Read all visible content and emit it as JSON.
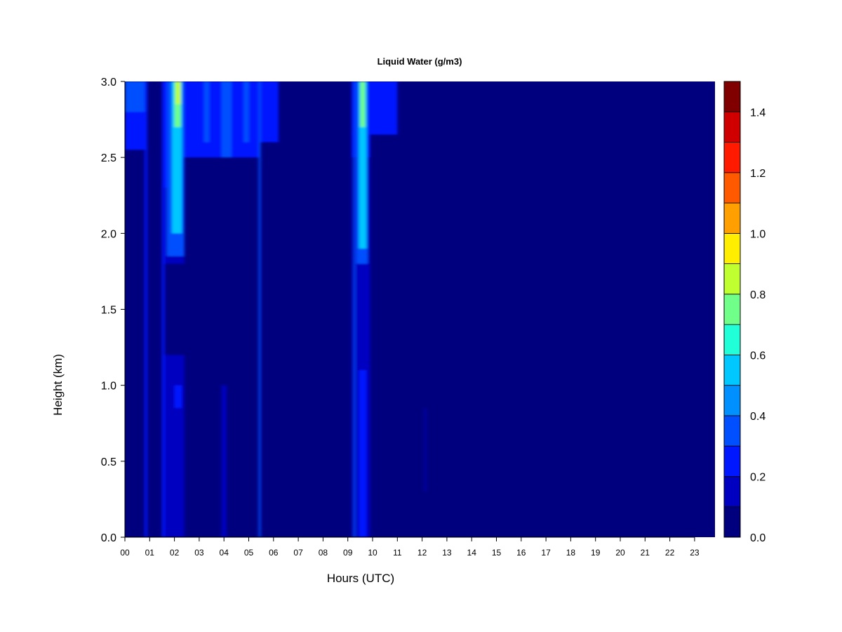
{
  "chart_data": {
    "type": "heatmap",
    "title": "Liquid Water (g/m3)",
    "xlabel": "Hours (UTC)",
    "ylabel": "Height (km)",
    "xlim": [
      0,
      24
    ],
    "ylim": [
      0.0,
      3.0
    ],
    "x_ticks": [
      "00",
      "01",
      "02",
      "03",
      "04",
      "05",
      "06",
      "07",
      "08",
      "09",
      "10",
      "11",
      "12",
      "13",
      "14",
      "15",
      "16",
      "17",
      "18",
      "19",
      "20",
      "21",
      "22",
      "23"
    ],
    "y_ticks": [
      "0.0",
      "0.5",
      "1.0",
      "1.5",
      "2.0",
      "2.5",
      "3.0"
    ],
    "colorbar": {
      "min": 0.0,
      "max": 1.5,
      "step": 0.1,
      "tick_labels": [
        "0.0",
        "0.2",
        "0.4",
        "0.6",
        "0.8",
        "1.0",
        "1.2",
        "1.4"
      ],
      "colors": [
        "#00007f",
        "#0000c0",
        "#0018ff",
        "#0050ff",
        "#0090ff",
        "#00c8ff",
        "#20ffd8",
        "#70ff88",
        "#c0ff30",
        "#ffee00",
        "#ffa000",
        "#ff5a00",
        "#ff1a00",
        "#d00000",
        "#800000"
      ]
    },
    "background_value": 0.0,
    "features": [
      {
        "hours": [
          0.0,
          0.9
        ],
        "height_km": [
          2.55,
          3.0
        ],
        "value": 0.2
      },
      {
        "hours": [
          0.0,
          0.9
        ],
        "height_km": [
          2.8,
          3.0
        ],
        "value": 0.3
      },
      {
        "hours": [
          0.8,
          0.9
        ],
        "height_km": [
          0.0,
          3.0
        ],
        "value": 0.2
      },
      {
        "hours": [
          1.5,
          2.4
        ],
        "height_km": [
          2.3,
          3.0
        ],
        "value": 0.2
      },
      {
        "hours": [
          1.5,
          2.4
        ],
        "height_km": [
          1.8,
          2.3
        ],
        "value": 0.1
      },
      {
        "hours": [
          1.5,
          2.4
        ],
        "height_km": [
          0.0,
          1.2
        ],
        "value": 0.1
      },
      {
        "hours": [
          1.5,
          1.6
        ],
        "height_km": [
          0.0,
          3.0
        ],
        "value": 0.2
      },
      {
        "hours": [
          1.7,
          2.4
        ],
        "height_km": [
          1.85,
          3.0
        ],
        "value": 0.3
      },
      {
        "hours": [
          1.9,
          2.3
        ],
        "height_km": [
          2.0,
          3.0
        ],
        "value": 0.5
      },
      {
        "hours": [
          2.0,
          2.25
        ],
        "height_km": [
          2.7,
          3.0
        ],
        "value": 0.7
      },
      {
        "hours": [
          2.05,
          2.25
        ],
        "height_km": [
          2.85,
          3.0
        ],
        "value": 0.8
      },
      {
        "hours": [
          2.0,
          2.3
        ],
        "height_km": [
          0.85,
          1.0
        ],
        "value": 0.2
      },
      {
        "hours": [
          2.4,
          5.4
        ],
        "height_km": [
          2.5,
          3.0
        ],
        "value": 0.2
      },
      {
        "hours": [
          3.2,
          3.4
        ],
        "height_km": [
          2.6,
          3.0
        ],
        "value": 0.3
      },
      {
        "hours": [
          3.9,
          4.3
        ],
        "height_km": [
          2.5,
          3.0
        ],
        "value": 0.3
      },
      {
        "hours": [
          4.8,
          5.0
        ],
        "height_km": [
          2.6,
          3.0
        ],
        "value": 0.3
      },
      {
        "hours": [
          3.9,
          4.1
        ],
        "height_km": [
          0.0,
          1.0
        ],
        "value": 0.1
      },
      {
        "hours": [
          5.4,
          5.48
        ],
        "height_km": [
          0.0,
          3.0
        ],
        "value": 0.3
      },
      {
        "hours": [
          5.48,
          6.2
        ],
        "height_km": [
          2.6,
          3.0
        ],
        "value": 0.2
      },
      {
        "hours": [
          9.15,
          9.9
        ],
        "height_km": [
          2.5,
          3.0
        ],
        "value": 0.2
      },
      {
        "hours": [
          9.15,
          9.9
        ],
        "height_km": [
          0.0,
          2.5
        ],
        "value": 0.1
      },
      {
        "hours": [
          9.25,
          9.3
        ],
        "height_km": [
          0.0,
          3.0
        ],
        "value": 0.3
      },
      {
        "hours": [
          9.35,
          9.8
        ],
        "height_km": [
          1.8,
          3.0
        ],
        "value": 0.3
      },
      {
        "hours": [
          9.45,
          9.75
        ],
        "height_km": [
          1.9,
          3.0
        ],
        "value": 0.5
      },
      {
        "hours": [
          9.5,
          9.7
        ],
        "height_km": [
          2.7,
          3.0
        ],
        "value": 0.7
      },
      {
        "hours": [
          9.45,
          9.75
        ],
        "height_km": [
          0.0,
          1.1
        ],
        "value": 0.2
      },
      {
        "hours": [
          9.9,
          11.0
        ],
        "height_km": [
          2.65,
          3.0
        ],
        "value": 0.2
      },
      {
        "hours": [
          12.1,
          12.15
        ],
        "height_km": [
          0.3,
          0.85
        ],
        "value": 0.1
      }
    ]
  }
}
